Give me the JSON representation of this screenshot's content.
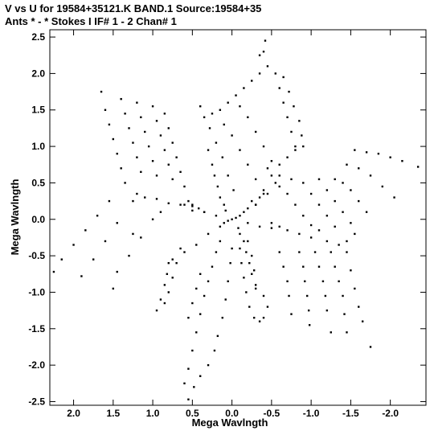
{
  "header": {
    "line1": "V vs U for 19584+35121.K BAND.1   Source:19584+35",
    "line2": "Ants * - *     Stokes I   IF# 1 - 2   Chan# 1"
  },
  "chart_data": {
    "type": "scatter",
    "xlabel": "Mega Wavlngth",
    "ylabel": "Mega Wavlngth",
    "xlim": [
      2.3,
      -2.45
    ],
    "ylim": [
      -2.55,
      2.6
    ],
    "x_ticks": [
      2.0,
      1.5,
      1.0,
      0.5,
      0.0,
      -0.5,
      -1.0,
      -1.5,
      -2.0
    ],
    "x_tick_labels": [
      "2.0",
      "1.5",
      "1.0",
      "0.5",
      "0.0",
      "-0.5",
      "-1.0",
      "-1.5",
      "-2.0"
    ],
    "y_ticks": [
      2.5,
      2.0,
      1.5,
      1.0,
      0.5,
      0.0,
      -0.5,
      -1.0,
      -1.5,
      -2.0,
      -2.5
    ],
    "y_tick_labels": [
      "2.5",
      "2.0",
      "1.5",
      "1.0",
      "0.5",
      "0.0",
      "-0.5",
      "-1.0",
      "-1.5",
      "-2.0",
      "-2.5"
    ],
    "grid": false,
    "series": [
      {
        "points": [
          [
            0.0,
            0.0
          ],
          [
            0.05,
            -0.02
          ],
          [
            -0.05,
            0.02
          ],
          [
            0.1,
            -0.05
          ],
          [
            -0.1,
            0.05
          ],
          [
            0.08,
            0.12
          ],
          [
            -0.08,
            -0.12
          ],
          [
            0.15,
            0.3
          ],
          [
            -0.15,
            -0.3
          ],
          [
            0.1,
            0.2
          ],
          [
            -0.1,
            -0.2
          ],
          [
            0.18,
            0.45
          ],
          [
            -0.18,
            -0.45
          ],
          [
            0.22,
            0.6
          ],
          [
            -0.22,
            -0.6
          ],
          [
            0.25,
            0.75
          ],
          [
            -0.25,
            -0.75
          ],
          [
            0.3,
            0.95
          ],
          [
            -0.3,
            -0.95
          ],
          [
            0.15,
            -0.1
          ],
          [
            -0.15,
            0.1
          ],
          [
            0.3,
            -0.2
          ],
          [
            -0.3,
            0.2
          ],
          [
            0.45,
            -0.35
          ],
          [
            -0.45,
            0.35
          ],
          [
            0.6,
            -0.45
          ],
          [
            -0.6,
            0.45
          ],
          [
            0.75,
            -0.55
          ],
          [
            -0.75,
            0.55
          ],
          [
            0.2,
            0.05
          ],
          [
            -0.2,
            -0.05
          ],
          [
            0.35,
            0.1
          ],
          [
            -0.35,
            -0.1
          ],
          [
            0.5,
            0.12
          ],
          [
            -0.5,
            -0.12
          ],
          [
            1.2,
            0.35
          ],
          [
            1.25,
            0.25
          ],
          [
            1.1,
            0.3
          ],
          [
            0.95,
            0.28
          ],
          [
            0.8,
            0.22
          ],
          [
            0.65,
            0.2
          ],
          [
            0.5,
            0.2
          ],
          [
            0.35,
            0.1
          ],
          [
            1.55,
            0.25
          ],
          [
            1.7,
            0.05
          ],
          [
            1.85,
            -0.15
          ],
          [
            2.0,
            -0.35
          ],
          [
            2.15,
            -0.55
          ],
          [
            2.25,
            -0.72
          ],
          [
            1.45,
            -0.05
          ],
          [
            1.6,
            -0.3
          ],
          [
            1.75,
            -0.55
          ],
          [
            1.9,
            -0.78
          ],
          [
            1.0,
            0.0
          ],
          [
            1.15,
            -0.25
          ],
          [
            1.3,
            -0.5
          ],
          [
            1.45,
            -0.72
          ],
          [
            1.5,
            -0.95
          ],
          [
            1.25,
            -0.2
          ],
          [
            0.9,
            0.1
          ],
          [
            1.65,
            1.75
          ],
          [
            1.6,
            1.5
          ],
          [
            1.55,
            1.3
          ],
          [
            1.5,
            1.1
          ],
          [
            1.45,
            0.9
          ],
          [
            1.4,
            0.7
          ],
          [
            1.35,
            0.5
          ],
          [
            1.4,
            1.65
          ],
          [
            1.35,
            1.45
          ],
          [
            1.3,
            1.25
          ],
          [
            1.25,
            1.05
          ],
          [
            1.2,
            0.85
          ],
          [
            1.15,
            0.65
          ],
          [
            1.2,
            1.6
          ],
          [
            1.15,
            1.4
          ],
          [
            1.1,
            1.2
          ],
          [
            1.05,
            1.0
          ],
          [
            1.0,
            0.8
          ],
          [
            0.95,
            0.6
          ],
          [
            1.0,
            1.55
          ],
          [
            0.95,
            1.35
          ],
          [
            0.9,
            1.15
          ],
          [
            0.85,
            0.95
          ],
          [
            0.8,
            0.75
          ],
          [
            0.75,
            0.55
          ],
          [
            0.85,
            1.45
          ],
          [
            0.8,
            1.25
          ],
          [
            0.75,
            1.05
          ],
          [
            0.7,
            0.85
          ],
          [
            0.65,
            0.65
          ],
          [
            0.6,
            0.45
          ],
          [
            0.55,
            0.25
          ],
          [
            0.6,
            0.2
          ],
          [
            0.5,
            0.18
          ],
          [
            0.42,
            0.15
          ],
          [
            0.35,
            1.4
          ],
          [
            0.4,
            1.55
          ],
          [
            0.25,
            1.45
          ],
          [
            0.15,
            1.5
          ],
          [
            0.05,
            1.6
          ],
          [
            -0.05,
            1.7
          ],
          [
            -0.15,
            1.8
          ],
          [
            -0.25,
            1.9
          ],
          [
            -0.35,
            2.0
          ],
          [
            -0.45,
            2.1
          ],
          [
            -0.4,
            2.3
          ],
          [
            -0.42,
            2.45
          ],
          [
            -0.35,
            2.25
          ],
          [
            0.28,
            1.25
          ],
          [
            0.2,
            1.05
          ],
          [
            0.12,
            0.85
          ],
          [
            0.05,
            0.6
          ],
          [
            -0.02,
            0.4
          ],
          [
            -0.1,
            1.55
          ],
          [
            -0.2,
            1.4
          ],
          [
            -0.3,
            1.2
          ],
          [
            -0.4,
            1.0
          ],
          [
            -0.5,
            0.8
          ],
          [
            -0.6,
            0.6
          ],
          [
            0.1,
            1.3
          ],
          [
            0.0,
            1.15
          ],
          [
            -0.1,
            0.95
          ],
          [
            -0.2,
            0.75
          ],
          [
            -0.3,
            0.55
          ],
          [
            -0.4,
            0.35
          ],
          [
            -0.55,
            2.0
          ],
          [
            -0.6,
            1.8
          ],
          [
            -0.65,
            1.6
          ],
          [
            -0.7,
            1.4
          ],
          [
            -0.75,
            1.2
          ],
          [
            -0.8,
            1.0
          ],
          [
            -0.65,
            1.95
          ],
          [
            -0.72,
            1.75
          ],
          [
            -0.78,
            1.55
          ],
          [
            -0.85,
            1.35
          ],
          [
            -0.88,
            1.15
          ],
          [
            -0.9,
            1.0
          ],
          [
            -0.55,
            0.5
          ],
          [
            -0.5,
            0.6
          ],
          [
            -0.45,
            0.7
          ],
          [
            -0.6,
            0.75
          ],
          [
            -0.7,
            0.85
          ],
          [
            -0.8,
            0.95
          ],
          [
            -0.3,
            0.2
          ],
          [
            -0.25,
            0.25
          ],
          [
            -0.2,
            0.15
          ],
          [
            -0.35,
            0.3
          ],
          [
            -0.4,
            0.4
          ],
          [
            -1.55,
            0.95
          ],
          [
            -1.7,
            0.92
          ],
          [
            -1.85,
            0.9
          ],
          [
            -2.0,
            0.85
          ],
          [
            -2.15,
            0.8
          ],
          [
            -2.35,
            0.72
          ],
          [
            -1.45,
            0.75
          ],
          [
            -1.6,
            0.7
          ],
          [
            -1.75,
            0.6
          ],
          [
            -1.9,
            0.45
          ],
          [
            -2.05,
            0.3
          ],
          [
            -1.3,
            0.55
          ],
          [
            -1.4,
            0.5
          ],
          [
            -1.5,
            0.4
          ],
          [
            -1.6,
            0.25
          ],
          [
            -1.7,
            0.1
          ],
          [
            -1.1,
            0.55
          ],
          [
            -1.2,
            0.4
          ],
          [
            -1.3,
            0.25
          ],
          [
            -1.4,
            0.1
          ],
          [
            -1.5,
            -0.05
          ],
          [
            -0.9,
            0.5
          ],
          [
            -1.0,
            0.35
          ],
          [
            -1.1,
            0.2
          ],
          [
            -1.2,
            0.05
          ],
          [
            -1.3,
            -0.1
          ],
          [
            -0.7,
            0.35
          ],
          [
            -0.8,
            0.2
          ],
          [
            -0.9,
            0.05
          ],
          [
            -1.0,
            -0.08
          ],
          [
            -1.1,
            -0.15
          ],
          [
            -0.5,
            -0.05
          ],
          [
            -0.6,
            -0.1
          ],
          [
            -0.7,
            -0.15
          ],
          [
            -0.85,
            -0.2
          ],
          [
            -1.0,
            -0.25
          ],
          [
            -1.2,
            -0.3
          ],
          [
            -1.35,
            -0.35
          ],
          [
            -1.45,
            -0.3
          ],
          [
            -1.55,
            -0.2
          ],
          [
            -0.85,
            -0.45
          ],
          [
            -0.9,
            -0.65
          ],
          [
            -0.92,
            -0.85
          ],
          [
            -0.95,
            -1.05
          ],
          [
            -0.97,
            -1.25
          ],
          [
            -0.98,
            -1.45
          ],
          [
            -1.05,
            -0.45
          ],
          [
            -1.1,
            -0.65
          ],
          [
            -1.15,
            -0.85
          ],
          [
            -1.18,
            -1.05
          ],
          [
            -1.2,
            -1.25
          ],
          [
            -1.25,
            -1.55
          ],
          [
            -1.25,
            -0.45
          ],
          [
            -1.3,
            -0.65
          ],
          [
            -1.35,
            -0.85
          ],
          [
            -1.4,
            -1.05
          ],
          [
            -1.42,
            -1.3
          ],
          [
            -1.45,
            -1.55
          ],
          [
            -1.45,
            -0.45
          ],
          [
            -1.5,
            -0.7
          ],
          [
            -1.55,
            -0.95
          ],
          [
            -1.6,
            -1.2
          ],
          [
            -1.65,
            -1.4
          ],
          [
            -1.75,
            -1.75
          ],
          [
            -0.6,
            -0.45
          ],
          [
            -0.65,
            -0.65
          ],
          [
            -0.7,
            -0.85
          ],
          [
            -0.72,
            -1.05
          ],
          [
            -0.75,
            -1.3
          ],
          [
            0.15,
            -0.3
          ],
          [
            0.2,
            -0.45
          ],
          [
            0.25,
            -0.65
          ],
          [
            0.3,
            -0.85
          ],
          [
            0.35,
            -1.05
          ],
          [
            0.4,
            -1.3
          ],
          [
            0.45,
            -1.55
          ],
          [
            0.5,
            -1.8
          ],
          [
            0.55,
            -2.05
          ],
          [
            0.6,
            -2.25
          ],
          [
            0.55,
            -2.47
          ],
          [
            0.65,
            -0.4
          ],
          [
            0.7,
            -0.6
          ],
          [
            0.75,
            -0.8
          ],
          [
            0.8,
            -1.0
          ],
          [
            0.85,
            -1.15
          ],
          [
            0.8,
            -0.6
          ],
          [
            0.82,
            -0.75
          ],
          [
            0.85,
            -0.9
          ],
          [
            0.9,
            -1.1
          ],
          [
            0.95,
            -1.25
          ],
          [
            0.4,
            -0.75
          ],
          [
            0.45,
            -0.95
          ],
          [
            0.5,
            -1.15
          ],
          [
            0.55,
            -1.35
          ],
          [
            0.0,
            -0.4
          ],
          [
            0.02,
            -0.6
          ],
          [
            0.05,
            -0.85
          ],
          [
            0.08,
            -1.1
          ],
          [
            0.12,
            -1.35
          ],
          [
            0.18,
            -1.6
          ],
          [
            0.22,
            -1.8
          ],
          [
            0.3,
            -2.0
          ],
          [
            0.4,
            -2.15
          ],
          [
            0.48,
            -2.3
          ],
          [
            -0.1,
            -0.4
          ],
          [
            -0.12,
            -0.6
          ],
          [
            -0.15,
            -0.8
          ],
          [
            -0.18,
            -1.0
          ],
          [
            -0.22,
            -1.2
          ],
          [
            -0.28,
            -1.35
          ],
          [
            -0.35,
            -1.4
          ],
          [
            -0.4,
            -1.35
          ],
          [
            -0.45,
            -1.2
          ],
          [
            -0.4,
            -1.05
          ],
          [
            -0.2,
            -0.3
          ],
          [
            -0.25,
            -0.5
          ],
          [
            -0.28,
            -0.7
          ],
          [
            -0.3,
            -0.9
          ]
        ]
      }
    ]
  }
}
